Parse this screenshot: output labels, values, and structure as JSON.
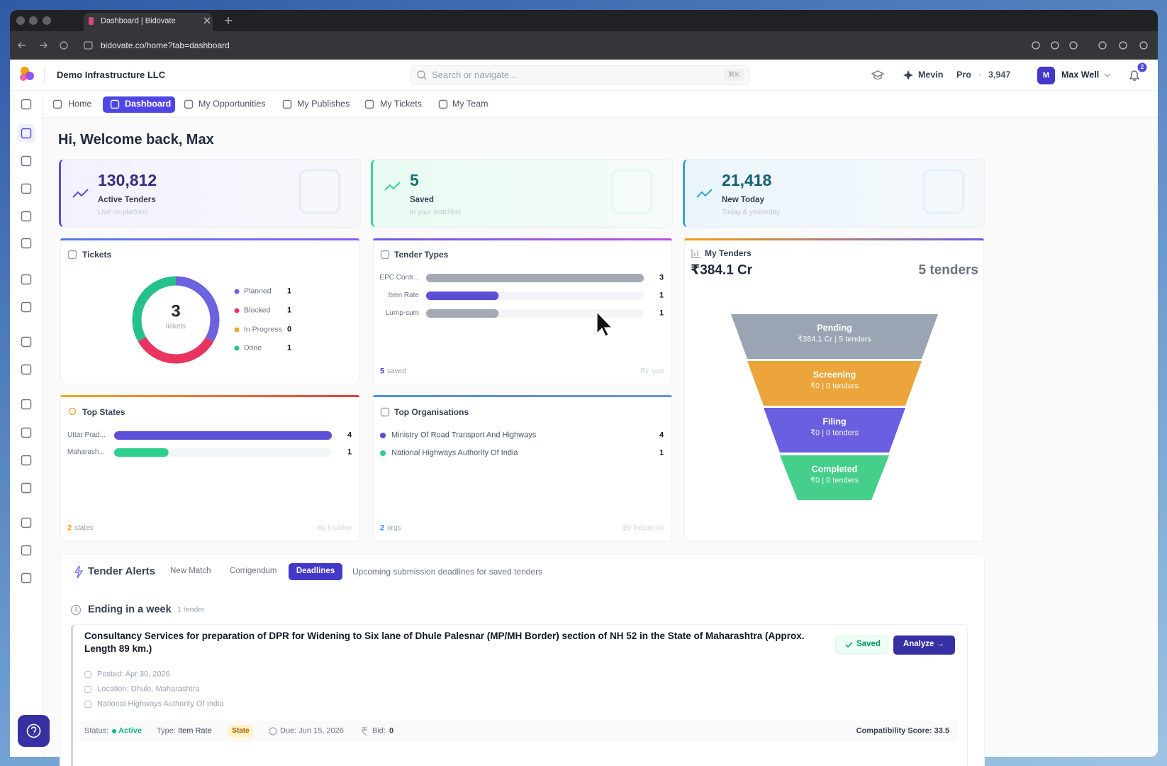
{
  "browser": {
    "tab_title": "Dashboard | Bidovate",
    "url": "bidovate.co/home?tab=dashboard"
  },
  "header": {
    "company": "Demo Infrastructure LLC",
    "search_placeholder": "Search or navigate...",
    "search_shortcut": "⌘K",
    "assistant": "Mevin",
    "plan": "Pro",
    "credits": "3,947",
    "avatar": "M",
    "user": "Max Well",
    "notifications": "2"
  },
  "nav": {
    "items": [
      "Home",
      "Dashboard",
      "My Opportunities",
      "My Publishes",
      "My Tickets",
      "My Team"
    ],
    "active": 1
  },
  "greeting": "Hi, Welcome back, Max",
  "stats": [
    {
      "value": "130,812",
      "label": "Active Tenders",
      "note": "Live on platform"
    },
    {
      "value": "5",
      "label": "Saved",
      "note": "In your watchlist"
    },
    {
      "value": "21,418",
      "label": "New Today",
      "note": "Today & yesterday"
    }
  ],
  "tickets": {
    "title": "Tickets",
    "total": 3,
    "total_label": "tickets",
    "items": [
      {
        "name": "Planned",
        "value": 1,
        "color": "#6c63e0"
      },
      {
        "name": "Blocked",
        "value": 1,
        "color": "#e8345e"
      },
      {
        "name": "In Progress",
        "value": 0,
        "color": "#f0a91f"
      },
      {
        "name": "Done",
        "value": 1,
        "color": "#26c08a"
      }
    ]
  },
  "tender_types": {
    "title": "Tender Types",
    "items": [
      {
        "name": "EPC Contr...",
        "value": 3,
        "color": "#a3a9b5"
      },
      {
        "name": "Item Rate",
        "value": 1,
        "color": "#5b4fd6"
      },
      {
        "name": "Lump-sum",
        "value": 1,
        "color": "#a3a9b5"
      }
    ],
    "footer_count": 5,
    "footer_unit": "saved",
    "footer_note": "By type"
  },
  "top_states": {
    "title": "Top States",
    "items": [
      {
        "name": "Uttar Prad...",
        "value": 4,
        "color": "#5b4fd6"
      },
      {
        "name": "Maharash...",
        "value": 1,
        "color": "#2ecf8f"
      }
    ],
    "footer_count": 2,
    "footer_unit": "states",
    "footer_note": "By location"
  },
  "top_orgs": {
    "title": "Top Organisations",
    "items": [
      {
        "name": "Ministry Of Road Transport And Highways",
        "value": 4,
        "color": "#5b4fd6"
      },
      {
        "name": "National Highways Authority Of India",
        "value": 1,
        "color": "#2ecf8f"
      }
    ],
    "footer_count": 2,
    "footer_unit": "orgs",
    "footer_note": "By frequency"
  },
  "my_tenders": {
    "title": "My Tenders",
    "amount": "₹384.1 Cr",
    "count": "5 tenders",
    "stages": [
      {
        "name": "Pending",
        "detail": "₹384.1 Cr | 5 tenders",
        "color": "#9ba4b3"
      },
      {
        "name": "Screening",
        "detail": "₹0 | 0 tenders",
        "color": "#eba53a"
      },
      {
        "name": "Filing",
        "detail": "₹0 | 0 tenders",
        "color": "#6a5fe0"
      },
      {
        "name": "Completed",
        "detail": "₹0 | 0 tenders",
        "color": "#45cf8a"
      }
    ]
  },
  "alerts": {
    "title": "Tender Alerts",
    "tabs": [
      "New Match",
      "Corrigendum",
      "Deadlines"
    ],
    "active_tab": 2,
    "description": "Upcoming submission deadlines for saved tenders",
    "section": "Ending in a week",
    "section_count": "1 tender",
    "tender": {
      "title": "Consultancy Services for preparation of DPR for Widening to Six lane of Dhule Palesnar (MP/MH Border) section of NH 52 in the State of Maharashtra (Approx. Length 89 km.)",
      "saved": "Saved",
      "action": "Analyze →",
      "posted": "Posted: Apr 30, 2026",
      "location": "Location: Dhule, Maharashtra",
      "organisation": "National Highways Authority Of India",
      "status_label": "Status:",
      "status": "Active",
      "type_label": "Type:",
      "type": "Item Rate",
      "badge": "State",
      "due": "Due: Jun 15, 2026",
      "bid_label": "Bid:",
      "bid": "0",
      "score": "Compatibility Score: 33.5"
    }
  }
}
